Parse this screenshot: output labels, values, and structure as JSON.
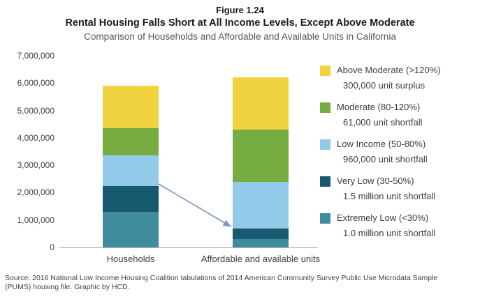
{
  "figure": {
    "number": "Figure 1.24",
    "title": "Rental Housing Falls Short at All Income Levels, Except Above Moderate",
    "subtitle": "Comparison of Households and Affordable and Available Units in California"
  },
  "source": "Source: 2016 National Low Income Housing Coalition tabulations of 2014 American Community Survey Public Use Microdata Sample (PUMS) housing file. Graphic by HCD.",
  "chart_data": {
    "type": "bar",
    "stacked": true,
    "title": "Comparison of Households and Affordable and Available Units in California",
    "categories": [
      "Households",
      "Affordable and available units"
    ],
    "series": [
      {
        "name": "Extremely Low (<30%)",
        "note": "1.0 million unit shortfall",
        "color": "#3E8C9E",
        "values": [
          1300000,
          300000
        ]
      },
      {
        "name": "Very Low (30-50%)",
        "note": "1.5 million unit shortfall",
        "color": "#17596E",
        "values": [
          950000,
          400000
        ]
      },
      {
        "name": "Low Income (50-80%)",
        "note": "960,000 unit shortfall",
        "color": "#92CBE9",
        "values": [
          1100000,
          1700000
        ]
      },
      {
        "name": "Moderate (80-120%)",
        "note": "61,000 unit shortfall",
        "color": "#77AC41",
        "values": [
          1000000,
          1900000
        ]
      },
      {
        "name": "Above Moderate (>120%)",
        "note": "300,000 unit surplus",
        "color": "#F0D33F",
        "values": [
          1550000,
          1900000
        ]
      }
    ],
    "totals": [
      5900000,
      6200000
    ],
    "ylim": [
      0,
      7000000
    ],
    "ytick_labels": [
      "0",
      "1,000,000",
      "2,000,000",
      "3,000,000",
      "4,000,000",
      "5,000,000",
      "6,000,000",
      "7,000,000"
    ],
    "grid": false,
    "legend_position": "right",
    "annotation": {
      "type": "arrow",
      "meaning": "shortfall from Very Low households to affordable units",
      "color": "#7B96C7"
    }
  }
}
